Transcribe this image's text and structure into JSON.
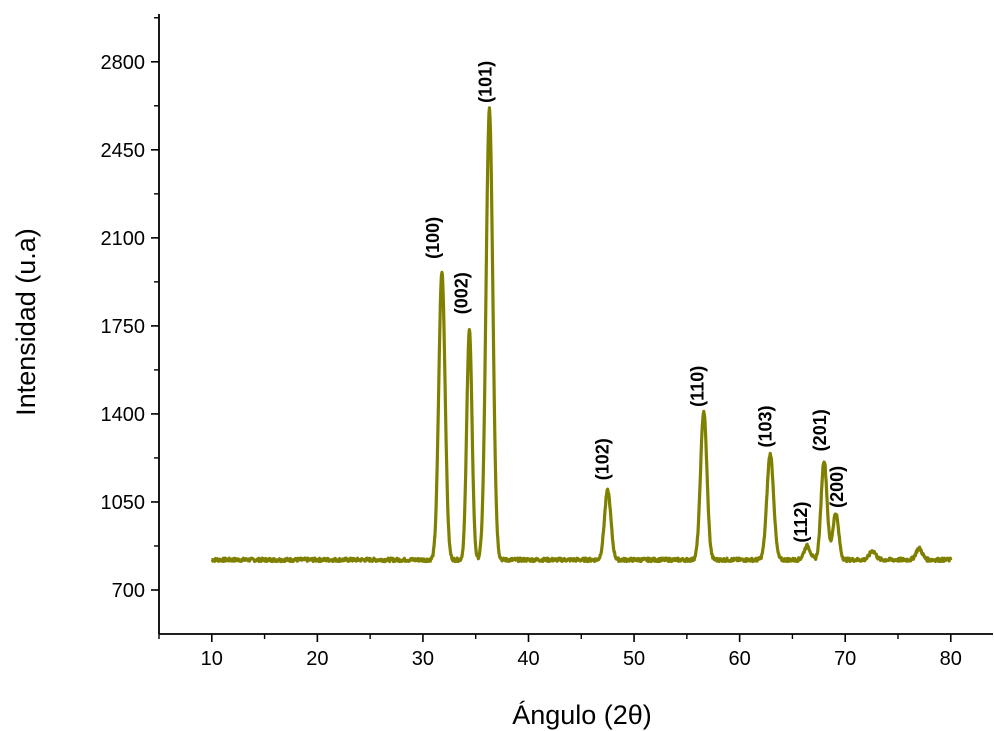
{
  "chart_data": {
    "type": "line",
    "xlabel": "Ángulo (2θ)",
    "ylabel": "Intensidad (u.a)",
    "xlim": [
      5,
      84
    ],
    "ylim": [
      525,
      2990
    ],
    "xticks": [
      10,
      20,
      30,
      40,
      50,
      60,
      70,
      80
    ],
    "yticks": [
      700,
      1050,
      1400,
      1750,
      2100,
      2450,
      2800
    ],
    "grid": false,
    "color": "#808000",
    "baseline": 820,
    "peaks": [
      {
        "x": 31.8,
        "height": 1145,
        "width": 0.3
      },
      {
        "x": 34.4,
        "height": 915,
        "width": 0.25
      },
      {
        "x": 36.3,
        "height": 1790,
        "width": 0.32
      },
      {
        "x": 47.5,
        "height": 275,
        "width": 0.3
      },
      {
        "x": 56.6,
        "height": 590,
        "width": 0.3
      },
      {
        "x": 62.9,
        "height": 420,
        "width": 0.32
      },
      {
        "x": 66.4,
        "height": 55,
        "width": 0.3
      },
      {
        "x": 68.0,
        "height": 395,
        "width": 0.28
      },
      {
        "x": 69.1,
        "height": 185,
        "width": 0.28
      },
      {
        "x": 72.6,
        "height": 35,
        "width": 0.3
      },
      {
        "x": 77.0,
        "height": 45,
        "width": 0.3
      }
    ],
    "annotations": [
      {
        "text": "(100)",
        "x": 31.5,
        "y": 2100
      },
      {
        "text": "(002)",
        "x": 34.2,
        "y": 1880
      },
      {
        "text": "(101)",
        "x": 36.5,
        "y": 2720
      },
      {
        "text": "(102)",
        "x": 47.6,
        "y": 1220
      },
      {
        "text": "(110)",
        "x": 56.6,
        "y": 1510
      },
      {
        "text": "(103)",
        "x": 63.0,
        "y": 1350
      },
      {
        "text": "(112)",
        "x": 66.4,
        "y": 970
      },
      {
        "text": "(201)",
        "x": 68.2,
        "y": 1335
      },
      {
        "text": "(200)",
        "x": 69.8,
        "y": 1110
      }
    ]
  }
}
